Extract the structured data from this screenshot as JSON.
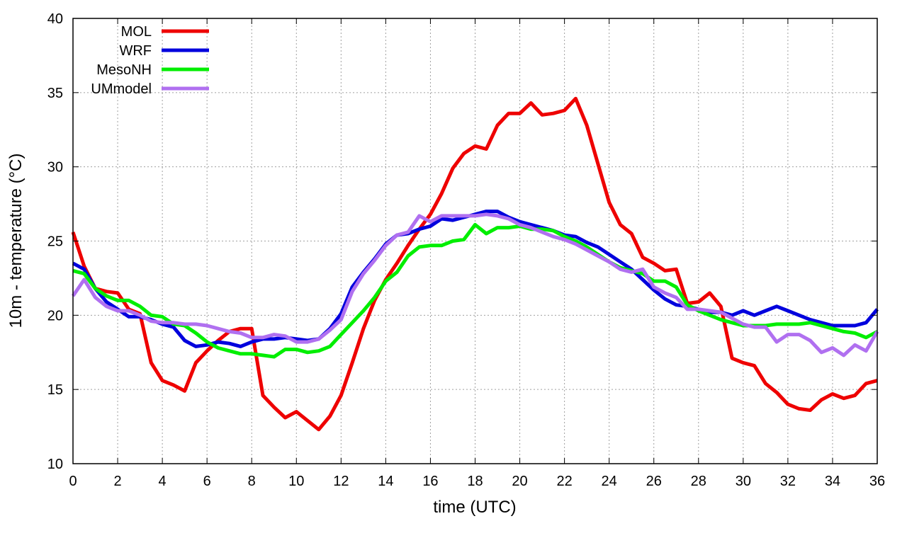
{
  "chart_data": {
    "type": "line",
    "title": "",
    "xlabel": "time (UTC)",
    "ylabel": "10m - temperature (°C)",
    "xlim": [
      0,
      36
    ],
    "ylim": [
      10,
      40
    ],
    "xticks": [
      0,
      2,
      4,
      6,
      8,
      10,
      12,
      14,
      16,
      18,
      20,
      22,
      24,
      26,
      28,
      30,
      32,
      34,
      36
    ],
    "yticks": [
      10,
      15,
      20,
      25,
      30,
      35,
      40
    ],
    "grid": true,
    "legend_position": "top-left",
    "x": [
      0,
      0.5,
      1,
      1.5,
      2,
      2.5,
      3,
      3.5,
      4,
      4.5,
      5,
      5.5,
      6,
      6.5,
      7,
      7.5,
      8,
      8.5,
      9,
      9.5,
      10,
      10.5,
      11,
      11.5,
      12,
      12.5,
      13,
      13.5,
      14,
      14.5,
      15,
      15.5,
      16,
      16.5,
      17,
      17.5,
      18,
      18.5,
      19,
      19.5,
      20,
      20.5,
      21,
      21.5,
      22,
      22.5,
      23,
      23.5,
      24,
      24.5,
      25,
      25.5,
      26,
      26.5,
      27,
      27.5,
      28,
      28.5,
      29,
      29.5,
      30,
      30.5,
      31,
      31.5,
      32,
      32.5,
      33,
      33.5,
      34,
      34.5,
      35,
      35.5,
      36
    ],
    "series": [
      {
        "name": "MOL",
        "color": "#ee0000",
        "values": [
          25.6,
          23.3,
          21.8,
          21.6,
          21.5,
          20.4,
          20.1,
          16.8,
          15.6,
          15.3,
          14.9,
          16.8,
          17.6,
          18.3,
          18.9,
          19.1,
          19.1,
          14.6,
          13.8,
          13.1,
          13.5,
          12.9,
          12.3,
          13.2,
          14.6,
          16.8,
          19.1,
          21.0,
          22.4,
          23.5,
          24.7,
          25.8,
          26.8,
          28.2,
          29.9,
          30.9,
          31.4,
          31.2,
          32.8,
          33.6,
          33.6,
          34.3,
          33.5,
          33.6,
          33.8,
          34.6,
          32.8,
          30.2,
          27.6,
          26.1,
          25.5,
          23.9,
          23.5,
          23.0,
          23.1,
          20.8,
          20.9,
          21.5,
          20.6,
          17.1,
          16.8,
          16.6,
          15.4,
          14.8,
          14.0,
          13.7,
          13.6,
          14.3,
          14.7,
          14.4,
          14.6,
          15.4,
          15.6
        ]
      },
      {
        "name": "WRF",
        "color": "#0000dd",
        "values": [
          23.5,
          23.1,
          21.8,
          20.9,
          20.4,
          19.9,
          19.9,
          19.7,
          19.4,
          19.2,
          18.3,
          17.9,
          18.0,
          18.2,
          18.1,
          17.9,
          18.2,
          18.4,
          18.4,
          18.5,
          18.4,
          18.3,
          18.4,
          19.1,
          20.1,
          21.9,
          22.9,
          23.8,
          24.8,
          25.4,
          25.5,
          25.8,
          26.0,
          26.5,
          26.4,
          26.6,
          26.8,
          27.0,
          27.0,
          26.6,
          26.3,
          26.1,
          25.9,
          25.7,
          25.4,
          25.3,
          24.9,
          24.6,
          24.1,
          23.6,
          23.1,
          22.4,
          21.7,
          21.1,
          20.7,
          20.6,
          20.4,
          20.2,
          20.2,
          20.0,
          20.3,
          20.0,
          20.3,
          20.6,
          20.3,
          20.0,
          19.7,
          19.5,
          19.3,
          19.3,
          19.3,
          19.5,
          20.4
        ]
      },
      {
        "name": "MesoNH",
        "color": "#00ee00",
        "values": [
          23.0,
          22.8,
          21.8,
          21.3,
          21.0,
          21.0,
          20.6,
          20.0,
          19.9,
          19.4,
          19.3,
          18.8,
          18.2,
          17.8,
          17.6,
          17.4,
          17.4,
          17.3,
          17.2,
          17.7,
          17.7,
          17.5,
          17.6,
          17.9,
          18.7,
          19.5,
          20.3,
          21.2,
          22.3,
          22.9,
          24.0,
          24.6,
          24.7,
          24.7,
          25.0,
          25.1,
          26.1,
          25.5,
          25.9,
          25.9,
          26.0,
          25.8,
          25.8,
          25.7,
          25.3,
          25.0,
          24.6,
          24.1,
          23.6,
          23.2,
          23.0,
          22.8,
          22.3,
          22.3,
          21.9,
          20.7,
          20.3,
          20.0,
          19.7,
          19.5,
          19.3,
          19.3,
          19.3,
          19.4,
          19.4,
          19.4,
          19.5,
          19.3,
          19.1,
          18.9,
          18.8,
          18.5,
          18.9
        ]
      },
      {
        "name": "UMmodel",
        "color": "#b070f0",
        "values": [
          21.3,
          22.4,
          21.2,
          20.6,
          20.3,
          20.3,
          20.0,
          19.6,
          19.5,
          19.5,
          19.4,
          19.4,
          19.3,
          19.1,
          18.9,
          18.8,
          18.5,
          18.5,
          18.7,
          18.6,
          18.2,
          18.2,
          18.4,
          19.0,
          19.7,
          21.6,
          22.8,
          23.7,
          24.7,
          25.4,
          25.6,
          26.7,
          26.3,
          26.7,
          26.7,
          26.7,
          26.7,
          26.8,
          26.7,
          26.5,
          26.1,
          25.9,
          25.6,
          25.3,
          25.1,
          24.8,
          24.4,
          24.0,
          23.6,
          23.1,
          22.9,
          23.1,
          21.9,
          21.5,
          21.2,
          20.4,
          20.4,
          20.3,
          20.2,
          19.8,
          19.4,
          19.2,
          19.2,
          18.2,
          18.7,
          18.7,
          18.3,
          17.5,
          17.8,
          17.3,
          18.0,
          17.6,
          18.9
        ]
      }
    ]
  }
}
